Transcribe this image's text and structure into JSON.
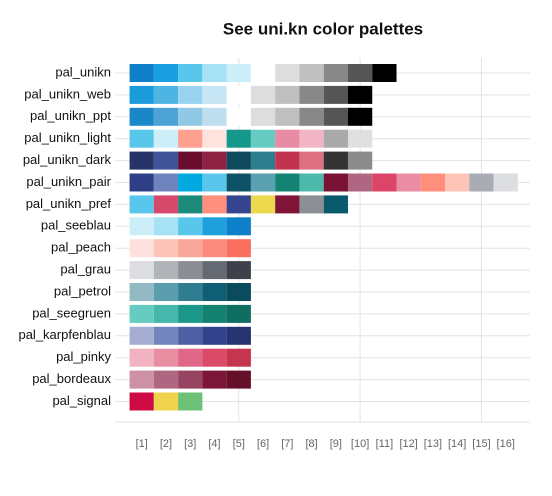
{
  "chart_data": {
    "type": "palette",
    "title": "See uni.kn color palettes",
    "palettes": [
      {
        "name": "pal_unikn",
        "colors": [
          "#0E7FC9",
          "#1A9FE0",
          "#59C7EB",
          "#A6E1F4",
          "#CCEEF9",
          "#FFFFFF",
          "#DDDDDD",
          "#C0C0C0",
          "#888888",
          "#555555",
          "#000000"
        ]
      },
      {
        "name": "pal_unikn_web",
        "colors": [
          "#1A9BDB",
          "#4DB4E3",
          "#99D3EF",
          "#C6E6F6",
          "#FFFFFF",
          "#DDDDDD",
          "#BFBFBF",
          "#888888",
          "#555555",
          "#000000"
        ]
      },
      {
        "name": "pal_unikn_ppt",
        "colors": [
          "#1A87C8",
          "#4DA3D6",
          "#91C8E6",
          "#BFDEEF",
          "#FFFFFF",
          "#DDDDDD",
          "#BFBFBF",
          "#888888",
          "#555555",
          "#000000"
        ]
      },
      {
        "name": "pal_unikn_light",
        "colors": [
          "#59C7EB",
          "#CCEEF9",
          "#FEA090",
          "#FEE2DD",
          "#16998A",
          "#66CCC1",
          "#E88CA4",
          "#F2B5C6",
          "#AAAAAA",
          "#E0E0E0"
        ]
      },
      {
        "name": "pal_unikn_dark",
        "colors": [
          "#263268",
          "#3E5496",
          "#6A0C2E",
          "#8E2043",
          "#0E4A5E",
          "#2E7D8F",
          "#C2344D",
          "#DD7082",
          "#333333",
          "#8C8C8C"
        ]
      },
      {
        "name": "pal_unikn_pair",
        "colors": [
          "#2E3F88",
          "#6F84BE",
          "#00A9E0",
          "#59C7EB",
          "#0D5266",
          "#59A0B0",
          "#138373",
          "#4DB9AA",
          "#7A1236",
          "#B06581",
          "#DD4568",
          "#EA8CA3",
          "#FF8F7A",
          "#FFC4B8",
          "#A9ADB3",
          "#DCDEE0"
        ]
      },
      {
        "name": "pal_unikn_pref",
        "colors": [
          "#59C7EB",
          "#D6496A",
          "#1B8A7A",
          "#FE8F7C",
          "#35448F",
          "#ECD94E",
          "#801537",
          "#8C8F96",
          "#0A5A6E"
        ]
      },
      {
        "name": "pal_seeblau",
        "colors": [
          "#CCEEF9",
          "#A6E1F4",
          "#59C7EB",
          "#1DA0DC",
          "#0E7FC9"
        ]
      },
      {
        "name": "pal_peach",
        "colors": [
          "#FEE0DC",
          "#FCC3B9",
          "#F9A79A",
          "#FB8C7D",
          "#FA6F5E"
        ]
      },
      {
        "name": "pal_grau",
        "colors": [
          "#DCDDE0",
          "#B0B3B8",
          "#8A8D94",
          "#656971",
          "#3E4149"
        ]
      },
      {
        "name": "pal_petrol",
        "colors": [
          "#93BAC4",
          "#5C9DAD",
          "#2E7D91",
          "#0F5E74",
          "#0B4B5E"
        ]
      },
      {
        "name": "pal_seegruen",
        "colors": [
          "#66CBC0",
          "#45B8AB",
          "#1C988A",
          "#158171",
          "#0E6E60"
        ]
      },
      {
        "name": "pal_karpfenblau",
        "colors": [
          "#A5AED2",
          "#7485BD",
          "#4E60A5",
          "#33428D",
          "#26336E"
        ]
      },
      {
        "name": "pal_pinky",
        "colors": [
          "#F1B2C1",
          "#E78EA3",
          "#E06787",
          "#DA4A69",
          "#C7344E"
        ]
      },
      {
        "name": "pal_bordeaux",
        "colors": [
          "#CC91A2",
          "#AF6781",
          "#964461",
          "#7B1638",
          "#641028"
        ]
      },
      {
        "name": "pal_signal",
        "colors": [
          "#CE0A45",
          "#EFD34C",
          "#6DC176"
        ]
      }
    ],
    "xlim": [
      -0.1,
      17
    ],
    "xticks": [
      {
        "value": 1,
        "label": "[1]"
      },
      {
        "value": 2,
        "label": "[2]"
      },
      {
        "value": 3,
        "label": "[3]"
      },
      {
        "value": 4,
        "label": "[4]"
      },
      {
        "value": 5,
        "label": "[5]"
      },
      {
        "value": 6,
        "label": "[6]"
      },
      {
        "value": 7,
        "label": "[7]"
      },
      {
        "value": 8,
        "label": "[8]"
      },
      {
        "value": 9,
        "label": "[9]"
      },
      {
        "value": 10,
        "label": "[10]"
      },
      {
        "value": 11,
        "label": "[11]"
      },
      {
        "value": 12,
        "label": "[12]"
      },
      {
        "value": 13,
        "label": "[13]"
      },
      {
        "value": 14,
        "label": "[14]"
      },
      {
        "value": 15,
        "label": "[15]"
      },
      {
        "value": 16,
        "label": "[16]"
      }
    ],
    "grid": true
  }
}
